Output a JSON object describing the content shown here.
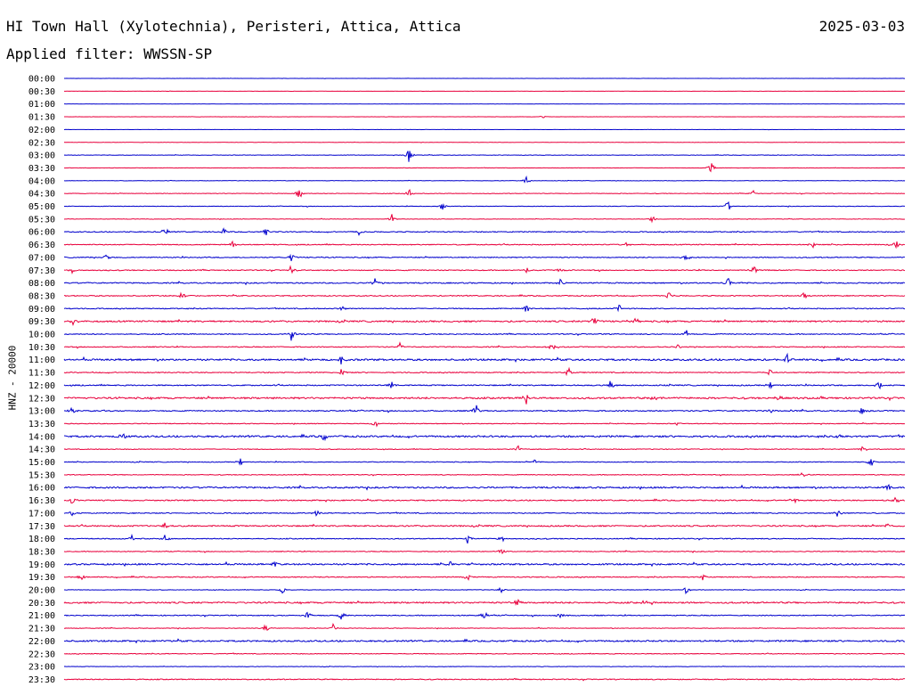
{
  "header": {
    "title": "HI Town Hall (Xylotechnia), Peristeri, Attica, Attica",
    "date": "2025-03-03",
    "filter": "Applied filter: WWSSN-SP"
  },
  "colors": {
    "odd": "#0000cc",
    "even": "#e8003c"
  },
  "chart_data": {
    "type": "line",
    "ylabel": "HNZ - 20000",
    "row_labels": [
      "00:00",
      "00:30",
      "01:00",
      "01:30",
      "02:00",
      "02:30",
      "03:00",
      "03:30",
      "04:00",
      "04:30",
      "05:00",
      "05:30",
      "06:00",
      "06:30",
      "07:00",
      "07:30",
      "08:00",
      "08:30",
      "09:00",
      "09:30",
      "10:00",
      "10:30",
      "11:00",
      "11:30",
      "12:00",
      "12:30",
      "13:00",
      "13:30",
      "14:00",
      "14:30",
      "15:00",
      "15:30",
      "16:00",
      "16:30",
      "17:00",
      "17:30",
      "18:00",
      "18:30",
      "19:00",
      "19:30",
      "20:00",
      "20:30",
      "21:00",
      "21:30",
      "22:00",
      "22:30",
      "23:00",
      "23:30"
    ],
    "noise_level": [
      0.2,
      0.2,
      0.2,
      0.3,
      0.2,
      0.3,
      0.5,
      0.4,
      0.4,
      0.6,
      0.6,
      0.5,
      1.0,
      1.0,
      1.0,
      1.0,
      1.2,
      1.0,
      1.0,
      1.6,
      1.0,
      1.0,
      1.8,
      1.0,
      1.2,
      1.8,
      1.2,
      0.8,
      1.8,
      0.8,
      0.8,
      0.8,
      1.6,
      1.2,
      1.0,
      1.4,
      1.0,
      0.8,
      1.6,
      1.0,
      0.6,
      1.6,
      1.0,
      0.6,
      1.6,
      0.8,
      0.5,
      1.0
    ],
    "events": [
      [],
      [],
      [],
      [
        [
          0.57,
          2
        ]
      ],
      [],
      [],
      [
        [
          0.41,
          8
        ]
      ],
      [
        [
          0.77,
          7
        ]
      ],
      [
        [
          0.55,
          6
        ]
      ],
      [
        [
          0.28,
          8
        ],
        [
          0.41,
          6
        ],
        [
          0.82,
          4
        ]
      ],
      [
        [
          0.45,
          6
        ],
        [
          0.79,
          7
        ]
      ],
      [
        [
          0.39,
          6
        ],
        [
          0.7,
          4
        ]
      ],
      [
        [
          0.12,
          6
        ],
        [
          0.19,
          5
        ],
        [
          0.24,
          5
        ],
        [
          0.35,
          5
        ]
      ],
      [
        [
          0.2,
          6
        ],
        [
          0.67,
          6
        ],
        [
          0.89,
          5
        ],
        [
          0.99,
          5
        ]
      ],
      [
        [
          0.05,
          4
        ],
        [
          0.27,
          5
        ],
        [
          0.74,
          5
        ]
      ],
      [
        [
          0.01,
          4
        ],
        [
          0.27,
          6
        ],
        [
          0.55,
          5
        ],
        [
          0.59,
          5
        ],
        [
          0.82,
          6
        ]
      ],
      [
        [
          0.37,
          6
        ],
        [
          0.59,
          5
        ],
        [
          0.79,
          7
        ]
      ],
      [
        [
          0.14,
          6
        ],
        [
          0.72,
          6
        ],
        [
          0.88,
          5
        ]
      ],
      [
        [
          0.33,
          4
        ],
        [
          0.55,
          8
        ],
        [
          0.66,
          5
        ]
      ],
      [
        [
          0.01,
          5
        ],
        [
          0.63,
          6
        ],
        [
          0.68,
          4
        ]
      ],
      [
        [
          0.27,
          8
        ],
        [
          0.74,
          6
        ]
      ],
      [
        [
          0.4,
          6
        ],
        [
          0.58,
          5
        ],
        [
          0.73,
          4
        ]
      ],
      [
        [
          0.33,
          6
        ],
        [
          0.86,
          6
        ]
      ],
      [
        [
          0.33,
          5
        ],
        [
          0.6,
          6
        ],
        [
          0.84,
          5
        ]
      ],
      [
        [
          0.39,
          5
        ],
        [
          0.65,
          6
        ],
        [
          0.84,
          5
        ],
        [
          0.97,
          5
        ]
      ],
      [
        [
          0.55,
          7
        ],
        [
          0.7,
          5
        ],
        [
          0.85,
          5
        ]
      ],
      [
        [
          0.01,
          5
        ],
        [
          0.49,
          8
        ],
        [
          0.84,
          5
        ],
        [
          0.95,
          6
        ]
      ],
      [
        [
          0.37,
          7
        ],
        [
          0.73,
          4
        ]
      ],
      [
        [
          0.07,
          5
        ],
        [
          0.31,
          7
        ],
        [
          0.92,
          5
        ]
      ],
      [
        [
          0.54,
          5
        ],
        [
          0.95,
          6
        ]
      ],
      [
        [
          0.21,
          6
        ],
        [
          0.56,
          4
        ],
        [
          0.96,
          6
        ]
      ],
      [
        [
          0.88,
          6
        ]
      ],
      [
        [
          0.98,
          6
        ]
      ],
      [
        [
          0.01,
          6
        ],
        [
          0.87,
          5
        ],
        [
          0.99,
          6
        ]
      ],
      [
        [
          0.01,
          4
        ],
        [
          0.3,
          5
        ],
        [
          0.92,
          5
        ]
      ],
      [
        [
          0.12,
          6
        ],
        [
          0.98,
          4
        ]
      ],
      [
        [
          0.08,
          5
        ],
        [
          0.12,
          5
        ],
        [
          0.48,
          5
        ],
        [
          0.52,
          5
        ]
      ],
      [
        [
          0.52,
          5
        ]
      ],
      [
        [
          0.25,
          6
        ],
        [
          0.46,
          6
        ]
      ],
      [
        [
          0.02,
          5
        ],
        [
          0.48,
          5
        ],
        [
          0.76,
          4
        ]
      ],
      [
        [
          0.26,
          5
        ],
        [
          0.52,
          6
        ],
        [
          0.74,
          6
        ]
      ],
      [
        [
          0.54,
          5
        ],
        [
          0.69,
          4
        ]
      ],
      [
        [
          0.29,
          6
        ],
        [
          0.33,
          6
        ],
        [
          0.5,
          6
        ],
        [
          0.59,
          5
        ]
      ],
      [
        [
          0.24,
          5
        ],
        [
          0.32,
          7
        ]
      ],
      [],
      [],
      [],
      []
    ]
  }
}
